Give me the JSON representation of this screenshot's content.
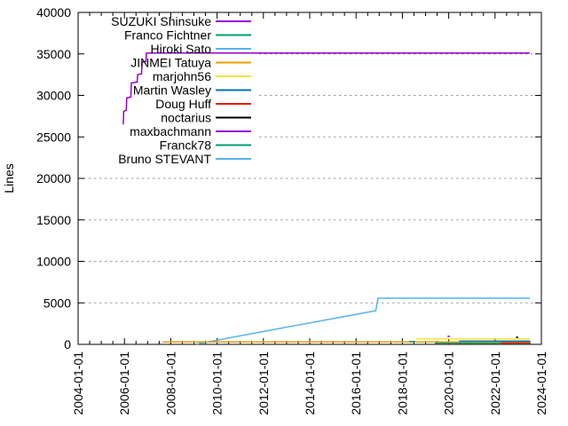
{
  "chart_data": {
    "type": "line",
    "title": "",
    "xlabel": "",
    "ylabel": "Lines",
    "ylim": [
      0,
      40000
    ],
    "xlim_years": [
      2004,
      2024
    ],
    "yticks": [
      0,
      5000,
      10000,
      15000,
      20000,
      25000,
      30000,
      35000,
      40000
    ],
    "ytick_labels": [
      "0",
      "5000",
      "10000",
      "15000",
      "20000",
      "25000",
      "30000",
      "35000",
      "40000"
    ],
    "xtick_years": [
      2004,
      2006,
      2008,
      2010,
      2012,
      2014,
      2016,
      2018,
      2020,
      2022,
      2024
    ],
    "xtick_labels": [
      "2004-01-01",
      "2006-01-01",
      "2008-01-01",
      "2010-01-01",
      "2012-01-01",
      "2014-01-01",
      "2016-01-01",
      "2018-01-01",
      "2020-01-01",
      "2022-01-01",
      "2024-01-01"
    ],
    "minor_xtick_interval_years": 0.5,
    "grid": "horizontal-dotted",
    "grid_color": "#9e9e9e",
    "legend_position": "top-left",
    "legend_opaque": true,
    "series": [
      {
        "name": "SUZUKI Shinsuke",
        "color": "#9400d3",
        "points": [
          [
            2005.95,
            26500
          ],
          [
            2005.97,
            28100
          ],
          [
            2006.08,
            28200
          ],
          [
            2006.1,
            29700
          ],
          [
            2006.28,
            29800
          ],
          [
            2006.3,
            31500
          ],
          [
            2006.55,
            31600
          ],
          [
            2006.57,
            32500
          ],
          [
            2006.74,
            32600
          ],
          [
            2006.76,
            34000
          ],
          [
            2006.93,
            34100
          ],
          [
            2006.95,
            35100
          ],
          [
            2023.5,
            35100
          ]
        ]
      },
      {
        "name": "Franco Fichtner",
        "color": "#009e73",
        "points": [
          [
            2019.4,
            160
          ],
          [
            2023.5,
            160
          ]
        ]
      },
      {
        "name": "Hiroki Sato",
        "color": "#56b4e9",
        "points": [
          [
            2009.1,
            30
          ],
          [
            2012.0,
            1550
          ],
          [
            2016.85,
            4050
          ],
          [
            2016.95,
            5560
          ],
          [
            2023.5,
            5560
          ]
        ]
      },
      {
        "name": "JINMEI Tatuya",
        "color": "#e69f00",
        "points": [
          [
            2007.65,
            300
          ],
          [
            2023.5,
            300
          ]
        ]
      },
      {
        "name": "marjohn56",
        "color": "#f0e442",
        "points": [
          [
            2018.6,
            650
          ],
          [
            2023.5,
            650
          ]
        ]
      },
      {
        "name": "Martin Wasley",
        "color": "#0072b2",
        "points": [
          [
            2020.45,
            380
          ],
          [
            2023.5,
            380
          ]
        ]
      },
      {
        "name": "Doug Huff",
        "color": "#e51e10",
        "points": [
          [
            2022.25,
            175
          ],
          [
            2023.5,
            175
          ]
        ]
      },
      {
        "name": "noctarius",
        "color": "#000000",
        "points": [
          [
            2022.9,
            860
          ],
          [
            2023.0,
            860
          ]
        ]
      },
      {
        "name": "maxbachmann",
        "color": "#9400d3",
        "points": [
          [
            2019.95,
            960
          ],
          [
            2020.05,
            960
          ]
        ]
      },
      {
        "name": "Franck78",
        "color": "#009e73",
        "points": [
          [
            2018.3,
            330
          ],
          [
            2018.55,
            330
          ]
        ]
      },
      {
        "name": "Bruno STEVANT",
        "color": "#56b4e9",
        "points": [
          [
            2017.3,
            5560
          ],
          [
            2017.45,
            5560
          ]
        ]
      }
    ]
  }
}
